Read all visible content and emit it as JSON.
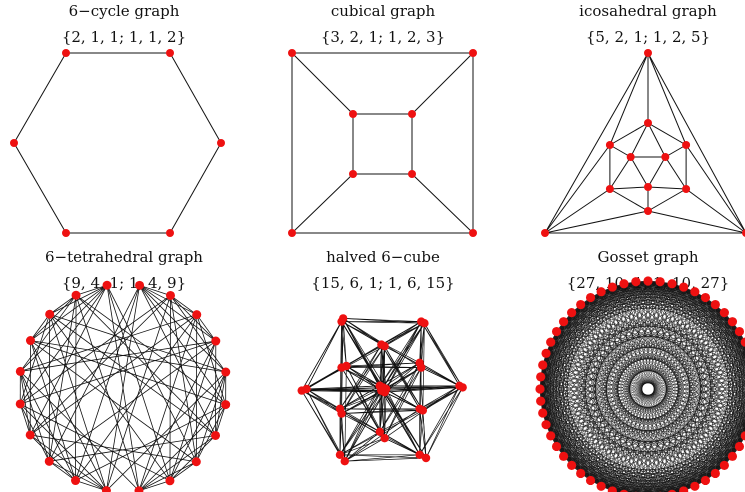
{
  "graphs": [
    {
      "title": "6−cycle graph",
      "params": "{2, 1, 1; 1, 1, 2}"
    },
    {
      "title": "cubical graph",
      "params": "{3, 2, 1; 1, 2, 3}"
    },
    {
      "title": "icosahedral graph",
      "params": "{5, 2, 1; 1, 2, 5}"
    },
    {
      "title": "6−tetrahedral graph",
      "params": "{9, 4, 1; 1, 4, 9}"
    },
    {
      "title": "halved 6−cube",
      "params": "{15, 6, 1; 1, 6, 15}"
    },
    {
      "title": "Gosset graph",
      "params": "{27, 10, 1; 1, 10, 27}"
    }
  ],
  "colors": {
    "vertex": "#ee1111",
    "edge": "#111111",
    "background": "#ffffff"
  }
}
